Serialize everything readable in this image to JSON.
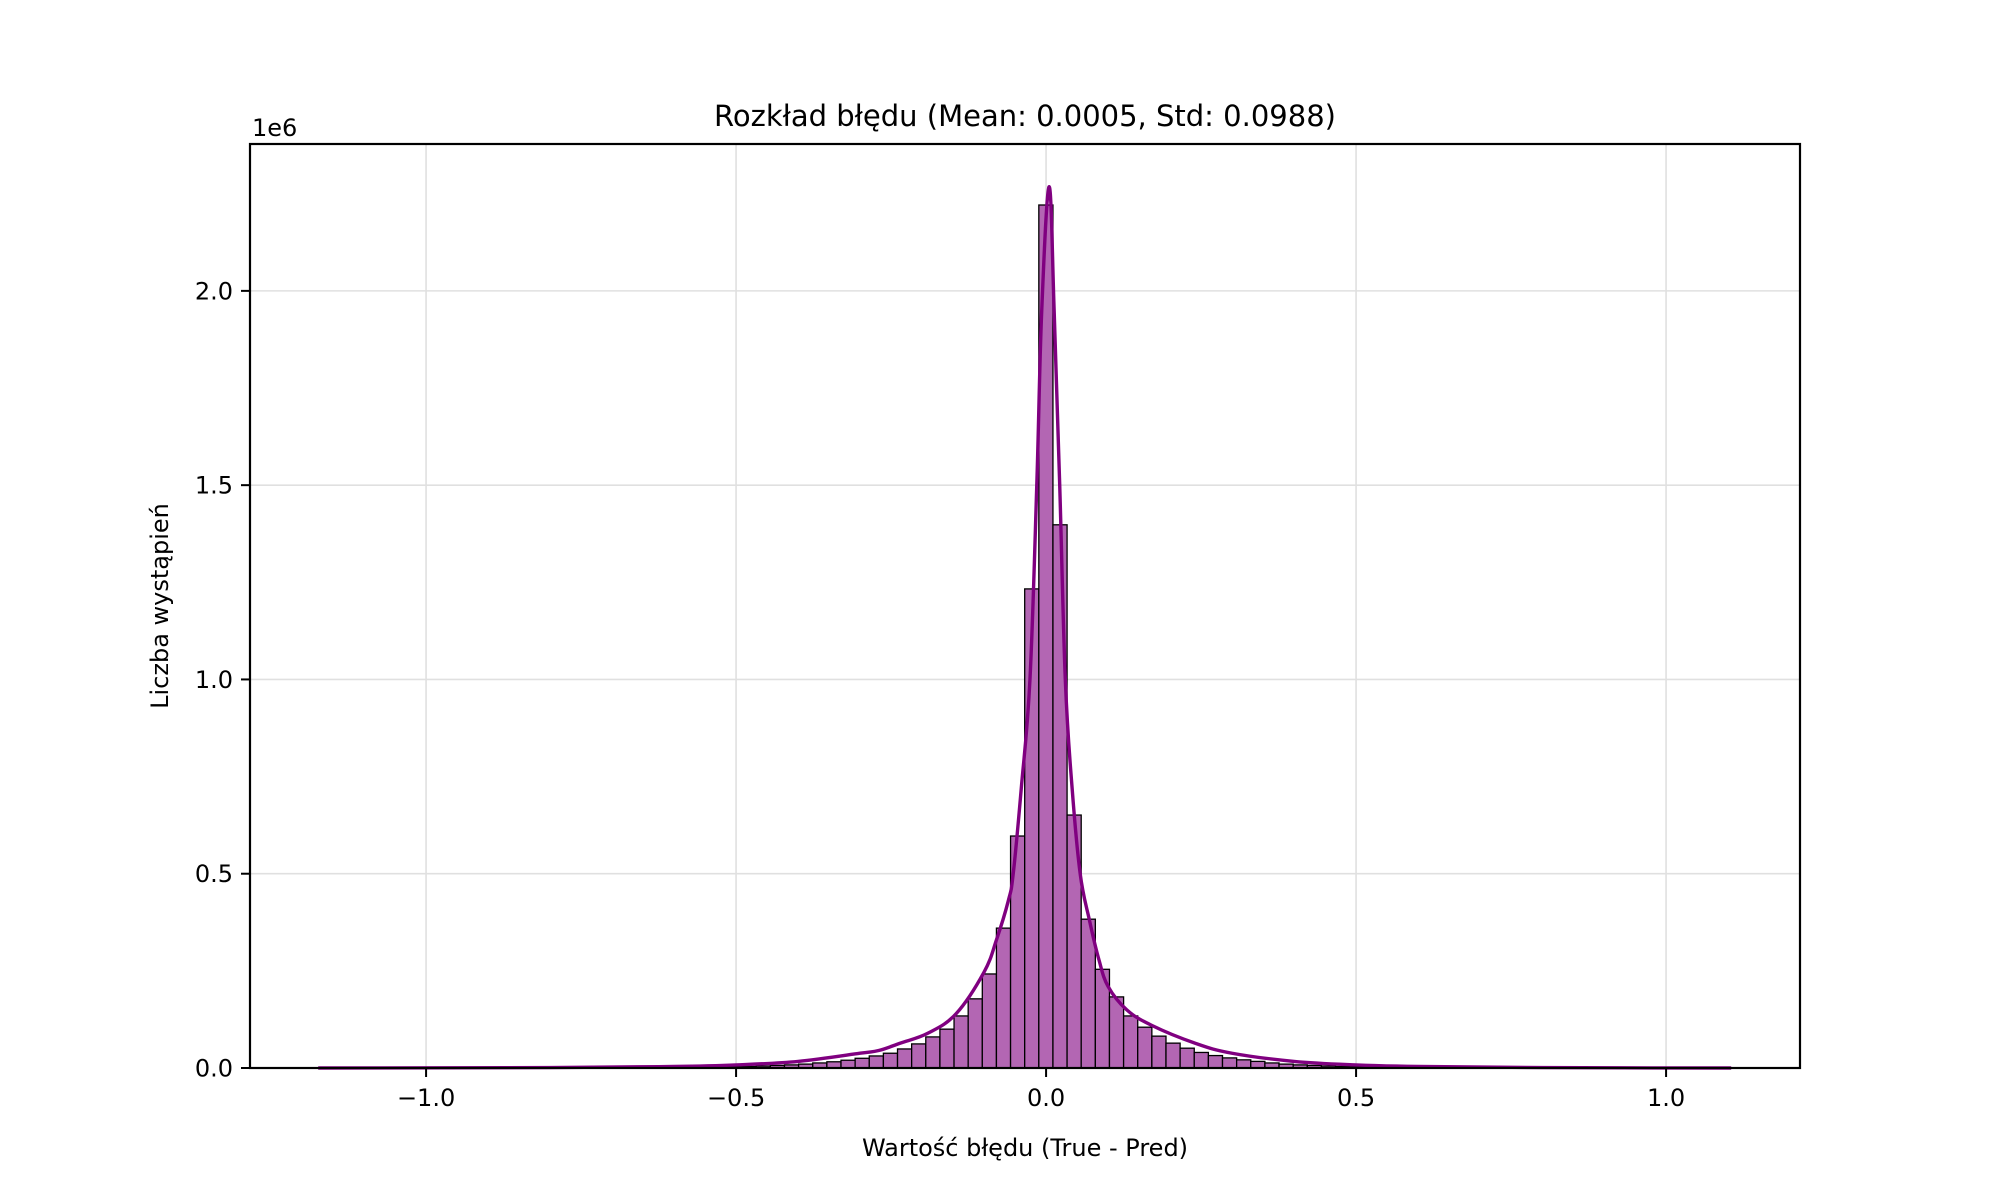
{
  "chart_data": {
    "type": "bar",
    "title": "Rozkład błędu (Mean: 0.0005, Std: 0.0988)",
    "xlabel": "Wartość błędu (True - Pred)",
    "ylabel": "Liczba wystąpień",
    "y_offset_label": "1e6",
    "xlim": [
      -1.284,
      1.216
    ],
    "ylim": [
      0,
      2.378
    ],
    "y_scale_factor": 1000000,
    "xticks": [
      -1.0,
      -0.5,
      0.0,
      0.5,
      1.0
    ],
    "xtick_labels": [
      "−1.0",
      "−0.5",
      "0.0",
      "0.5",
      "1.0"
    ],
    "yticks": [
      0.0,
      0.5,
      1.0,
      1.5,
      2.0
    ],
    "ytick_labels": [
      "0.0",
      "0.5",
      "1.0",
      "1.5",
      "2.0"
    ],
    "grid": true,
    "legend": null,
    "colors": {
      "bar_fill": "#b366b3",
      "bar_edge": "#000000",
      "kde_line": "#800080",
      "grid": "#e0e0e0"
    },
    "histogram": {
      "bin_start": -1.174,
      "bin_width": 0.02279,
      "n_bins": 100,
      "counts_1e6": [
        0,
        0,
        0,
        0,
        0,
        0,
        0,
        0,
        0,
        0,
        0,
        0,
        0,
        0,
        0.0001,
        0.0001,
        0.0002,
        0.0003,
        0.0004,
        0.0005,
        0.0006,
        0.0007,
        0.0008,
        0.0009,
        0.001,
        0.0012,
        0.0015,
        0.002,
        0.0025,
        0.003,
        0.004,
        0.005,
        0.0065,
        0.008,
        0.01,
        0.013,
        0.016,
        0.02,
        0.025,
        0.031,
        0.038,
        0.049,
        0.062,
        0.08,
        0.1,
        0.134,
        0.178,
        0.242,
        0.36,
        0.597,
        1.233,
        2.221,
        1.398,
        0.651,
        0.383,
        0.254,
        0.183,
        0.134,
        0.105,
        0.082,
        0.064,
        0.051,
        0.04,
        0.032,
        0.026,
        0.021,
        0.017,
        0.013,
        0.01,
        0.008,
        0.0065,
        0.005,
        0.004,
        0.003,
        0.0025,
        0.002,
        0.0015,
        0.0012,
        0.001,
        0.0009,
        0.0008,
        0.0007,
        0.0006,
        0.0005,
        0.0004,
        0.0003,
        0.0002,
        0.0002,
        0.0001,
        0.0001,
        0,
        0,
        0,
        0,
        0,
        0,
        0,
        0,
        0,
        0
      ]
    },
    "kde_1e6": [
      [
        -1.174,
        0
      ],
      [
        -0.8,
        0.001
      ],
      [
        -0.6,
        0.004
      ],
      [
        -0.5,
        0.008
      ],
      [
        -0.4,
        0.017
      ],
      [
        -0.3,
        0.038
      ],
      [
        -0.27,
        0.045
      ],
      [
        -0.235,
        0.064
      ],
      [
        -0.19,
        0.09
      ],
      [
        -0.145,
        0.14
      ],
      [
        -0.1,
        0.247
      ],
      [
        -0.08,
        0.33
      ],
      [
        -0.061,
        0.43
      ],
      [
        -0.053,
        0.5
      ],
      [
        -0.04,
        0.72
      ],
      [
        -0.026,
        1.0
      ],
      [
        -0.015,
        1.5
      ],
      [
        -0.007,
        1.95
      ],
      [
        0.005,
        2.268
      ],
      [
        0.013,
        1.95
      ],
      [
        0.022,
        1.5
      ],
      [
        0.031,
        1.0
      ],
      [
        0.042,
        0.72
      ],
      [
        0.055,
        0.5
      ],
      [
        0.07,
        0.38
      ],
      [
        0.085,
        0.28
      ],
      [
        0.1,
        0.21
      ],
      [
        0.13,
        0.15
      ],
      [
        0.17,
        0.11
      ],
      [
        0.24,
        0.064
      ],
      [
        0.3,
        0.038
      ],
      [
        0.4,
        0.017
      ],
      [
        0.5,
        0.008
      ],
      [
        0.6,
        0.004
      ],
      [
        0.8,
        0.001
      ],
      [
        1.105,
        0
      ]
    ],
    "stats": {
      "mean": 0.0005,
      "std": 0.0988
    }
  }
}
